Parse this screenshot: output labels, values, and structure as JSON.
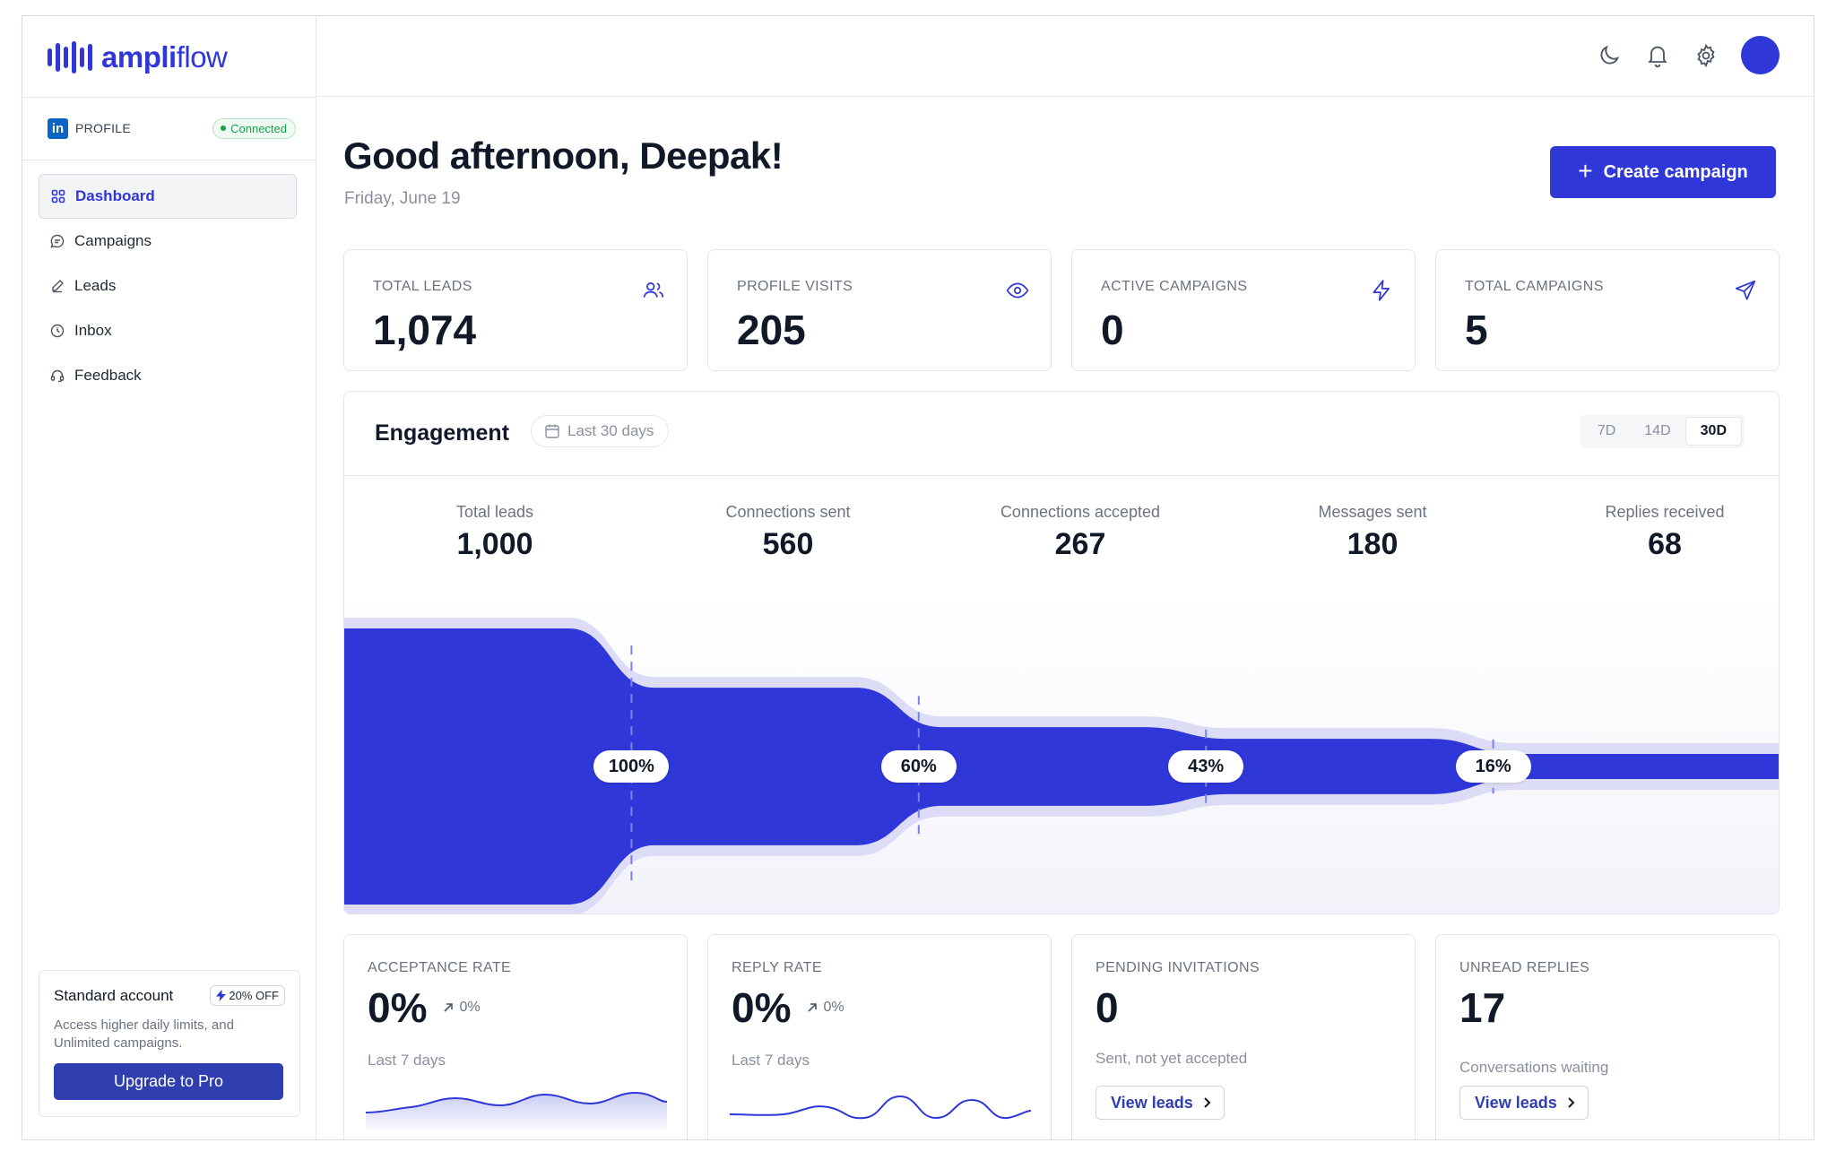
{
  "brand": {
    "logo_bold": "ampli",
    "logo_light": "flow",
    "accent": "#2f37d9"
  },
  "sidebar": {
    "profile_label": "PROFILE",
    "connected_label": "Connected",
    "linkedin_glyph": "in",
    "items": [
      {
        "label": "Dashboard",
        "icon": "grid-icon",
        "active": true
      },
      {
        "label": "Campaigns",
        "icon": "chat-bubble-icon"
      },
      {
        "label": "Leads",
        "icon": "pencil-icon"
      },
      {
        "label": "Inbox",
        "icon": "clock-icon"
      },
      {
        "label": "Feedback",
        "icon": "headset-icon"
      }
    ],
    "upgrade": {
      "title": "Standard account",
      "badge": "20% OFF",
      "description": "Access higher daily limits, and Unlimited campaigns.",
      "button": "Upgrade to Pro"
    }
  },
  "topbar": {
    "icons": [
      "moon-icon",
      "bell-icon",
      "gear-icon",
      "avatar"
    ]
  },
  "header": {
    "greeting": "Good afternoon, Deepak!",
    "date": "Friday, June 19",
    "create_button": "Create campaign"
  },
  "stats": [
    {
      "label": "TOTAL LEADS",
      "value": "1,074",
      "icon": "users-icon"
    },
    {
      "label": "PROFILE VISITS",
      "value": "205",
      "icon": "eye-icon"
    },
    {
      "label": "ACTIVE CAMPAIGNS",
      "value": "0",
      "icon": "bolt-icon"
    },
    {
      "label": "TOTAL CAMPAIGNS",
      "value": "5",
      "icon": "send-icon"
    }
  ],
  "engagement": {
    "title": "Engagement",
    "range_label": "Last 30 days",
    "ranges": [
      "7D",
      "14D",
      "30D"
    ],
    "selected_range": "30D",
    "stages": [
      {
        "label": "Total leads",
        "value": "1,000"
      },
      {
        "label": "Connections sent",
        "value": "560"
      },
      {
        "label": "Connections accepted",
        "value": "267"
      },
      {
        "label": "Messages sent",
        "value": "180"
      },
      {
        "label": "Replies received",
        "value": "68"
      }
    ],
    "conversion_labels": [
      "100%",
      "60%",
      "43%",
      "16%"
    ]
  },
  "chart_data": {
    "type": "area",
    "categories": [
      "Total leads",
      "Connections sent",
      "Connections accepted",
      "Messages sent",
      "Replies received"
    ],
    "values": [
      1000,
      560,
      267,
      180,
      68
    ],
    "annotations": [
      "100%",
      "60%",
      "43%",
      "16%"
    ]
  },
  "bottom_cards": [
    {
      "label": "ACCEPTANCE RATE",
      "value": "0%",
      "delta": "0%",
      "sub": "Last 7 days"
    },
    {
      "label": "REPLY RATE",
      "value": "0%",
      "delta": "0%",
      "sub": "Last 7 days"
    },
    {
      "label": "PENDING INVITATIONS",
      "value": "0",
      "sub": "Sent, not yet accepted",
      "button": "View leads"
    },
    {
      "label": "UNREAD REPLIES",
      "value": "17",
      "sub": "Conversations waiting",
      "button": "View leads"
    }
  ]
}
